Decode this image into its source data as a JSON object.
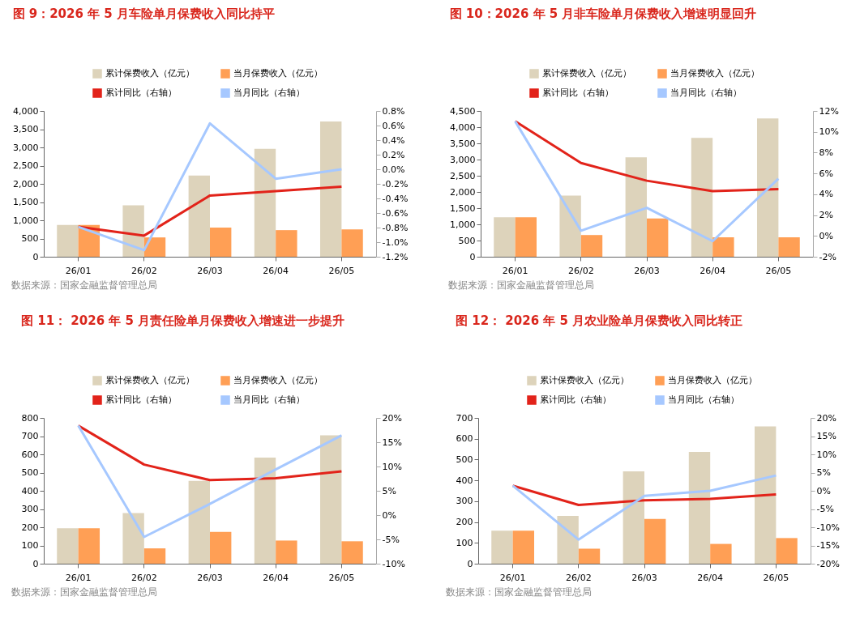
{
  "chart_data": [
    {
      "type": "bar",
      "title": "图 9：2026 年 5 月车险单月保费收入同比持平",
      "categories": [
        "26/01",
        "26/02",
        "26/03",
        "26/04",
        "26/05"
      ],
      "series": [
        {
          "name": "累计保费收入（亿元）",
          "type": "bar",
          "color": "#ddd3bb",
          "values": [
            870,
            1410,
            2230,
            2960,
            3710
          ]
        },
        {
          "name": "当月保费收入（亿元）",
          "type": "bar",
          "color": "#ff9f55",
          "values": [
            870,
            530,
            800,
            730,
            750
          ]
        },
        {
          "name": "累计同比（右轴）",
          "type": "line",
          "axis": "y2",
          "color": "#e2231a",
          "values": [
            -0.79,
            -0.91,
            -0.36,
            -0.3,
            -0.24
          ]
        },
        {
          "name": "当月同比（右轴）",
          "type": "line",
          "axis": "y2",
          "color": "#a6c8ff",
          "values": [
            -0.79,
            -1.11,
            0.63,
            -0.13,
            0.0
          ]
        }
      ],
      "ylim": [
        0,
        4000
      ],
      "yticks": [
        0,
        500,
        {
          "value": 1000,
          "label": "1,000"
        },
        {
          "value": 1500,
          "label": "1,500"
        },
        {
          "value": 2000,
          "label": "2,000"
        },
        {
          "value": 2500,
          "label": "2,500"
        },
        {
          "value": 3000,
          "label": "3,000"
        },
        {
          "value": 3500,
          "label": "3,500"
        },
        {
          "value": 4000,
          "label": "4,000"
        }
      ],
      "y2lim": [
        -1.2,
        0.8
      ],
      "y2ticks": [
        {
          "value": -1.2,
          "label": "-1.2%"
        },
        {
          "value": -1.0,
          "label": "-1.0%"
        },
        {
          "value": -0.8,
          "label": "-0.8%"
        },
        {
          "value": -0.6,
          "label": "-0.6%"
        },
        {
          "value": -0.4,
          "label": "-0.4%"
        },
        {
          "value": -0.2,
          "label": "-0.2%"
        },
        {
          "value": 0,
          "label": "0.0%"
        },
        {
          "value": 0.2,
          "label": "0.2%"
        },
        {
          "value": 0.4,
          "label": "0.4%"
        },
        {
          "value": 0.6,
          "label": "0.6%"
        },
        {
          "value": 0.8,
          "label": "0.8%"
        }
      ],
      "legend": "top",
      "annotations": [
        "数据来源：国家金融监督管理总局"
      ]
    },
    {
      "type": "bar",
      "title": "图 10：2026 年 5 月非车险单月保费收入增速明显回升",
      "categories": [
        "26/01",
        "26/02",
        "26/03",
        "26/04",
        "26/05"
      ],
      "series": [
        {
          "name": "累计保费收入（亿元）",
          "type": "bar",
          "color": "#ddd3bb",
          "values": [
            1220,
            1890,
            3070,
            3670,
            4270
          ]
        },
        {
          "name": "当月保费收入（亿元）",
          "type": "bar",
          "color": "#ff9f55",
          "values": [
            1220,
            670,
            1180,
            600,
            600
          ]
        },
        {
          "name": "累计同比（右轴）",
          "type": "line",
          "axis": "y2",
          "color": "#e2231a",
          "values": [
            11.0,
            7.0,
            5.3,
            4.3,
            4.5
          ]
        },
        {
          "name": "当月同比（右轴）",
          "type": "line",
          "axis": "y2",
          "color": "#a6c8ff",
          "values": [
            11.0,
            0.5,
            2.7,
            -0.5,
            5.5
          ]
        }
      ],
      "ylim": [
        0,
        4500
      ],
      "yticks": [
        0,
        500,
        {
          "value": 1000,
          "label": "1,000"
        },
        {
          "value": 1500,
          "label": "1,500"
        },
        {
          "value": 2000,
          "label": "2,000"
        },
        {
          "value": 2500,
          "label": "2,500"
        },
        {
          "value": 3000,
          "label": "3,000"
        },
        {
          "value": 3500,
          "label": "3,500"
        },
        {
          "value": 4000,
          "label": "4,000"
        },
        {
          "value": 4500,
          "label": "4,500"
        }
      ],
      "y2lim": [
        -2,
        12
      ],
      "y2ticks": [
        {
          "value": -2,
          "label": "-2%"
        },
        {
          "value": 0,
          "label": "0%"
        },
        {
          "value": 2,
          "label": "2%"
        },
        {
          "value": 4,
          "label": "4%"
        },
        {
          "value": 6,
          "label": "6%"
        },
        {
          "value": 8,
          "label": "8%"
        },
        {
          "value": 10,
          "label": "10%"
        },
        {
          "value": 12,
          "label": "12%"
        }
      ],
      "legend": "top",
      "annotations": [
        "数据来源：国家金融监督管理总局"
      ]
    },
    {
      "type": "bar",
      "title": "图 11： 2026 年 5 月责任险单月保费收入增速进一步提升",
      "categories": [
        "26/01",
        "26/02",
        "26/03",
        "26/04",
        "26/05"
      ],
      "series": [
        {
          "name": "累计保费收入（亿元）",
          "type": "bar",
          "color": "#ddd3bb",
          "values": [
            194,
            278,
            455,
            582,
            705
          ]
        },
        {
          "name": "当月保费收入（亿元）",
          "type": "bar",
          "color": "#ff9f55",
          "values": [
            194,
            84,
            175,
            127,
            123
          ]
        },
        {
          "name": "累计同比（右轴）",
          "type": "line",
          "axis": "y2",
          "color": "#e2231a",
          "values": [
            18.4,
            10.4,
            7.2,
            7.6,
            9.0
          ]
        },
        {
          "name": "当月同比（右轴）",
          "type": "line",
          "axis": "y2",
          "color": "#a6c8ff",
          "values": [
            18.4,
            -4.5,
            2.3,
            9.4,
            16.4
          ]
        }
      ],
      "ylim": [
        0,
        800
      ],
      "yticks": [
        0,
        100,
        200,
        300,
        400,
        500,
        600,
        700,
        800
      ],
      "y2lim": [
        -10,
        20
      ],
      "y2ticks": [
        {
          "value": -10,
          "label": "-10%"
        },
        {
          "value": -5,
          "label": "-5%"
        },
        {
          "value": 0,
          "label": "0%"
        },
        {
          "value": 5,
          "label": "5%"
        },
        {
          "value": 10,
          "label": "10%"
        },
        {
          "value": 15,
          "label": "15%"
        },
        {
          "value": 20,
          "label": "20%"
        }
      ],
      "legend": "top",
      "annotations": [
        "数据来源：国家金融监督管理总局"
      ]
    },
    {
      "type": "bar",
      "title": "图 12： 2026 年 5 月农业险单月保费收入同比转正",
      "categories": [
        "26/01",
        "26/02",
        "26/03",
        "26/04",
        "26/05"
      ],
      "series": [
        {
          "name": "累计保费收入（亿元）",
          "type": "bar",
          "color": "#ddd3bb",
          "values": [
            158,
            229,
            443,
            537,
            659
          ]
        },
        {
          "name": "当月保费收入（亿元）",
          "type": "bar",
          "color": "#ff9f55",
          "values": [
            158,
            72,
            215,
            95,
            123
          ]
        },
        {
          "name": "累计同比（右轴）",
          "type": "line",
          "axis": "y2",
          "color": "#e2231a",
          "values": [
            1.4,
            -3.9,
            -2.6,
            -2.2,
            -1.0
          ]
        },
        {
          "name": "当月同比（右轴）",
          "type": "line",
          "axis": "y2",
          "color": "#a6c8ff",
          "values": [
            1.4,
            -13.4,
            -1.4,
            0.0,
            4.2
          ]
        }
      ],
      "ylim": [
        0,
        700
      ],
      "yticks": [
        0,
        100,
        200,
        300,
        400,
        500,
        600,
        700
      ],
      "y2lim": [
        -20,
        20
      ],
      "y2ticks": [
        {
          "value": -20,
          "label": "-20%"
        },
        {
          "value": -15,
          "label": "-15%"
        },
        {
          "value": -10,
          "label": "-10%"
        },
        {
          "value": -5,
          "label": "-5%"
        },
        {
          "value": 0,
          "label": "0%"
        },
        {
          "value": 5,
          "label": "5%"
        },
        {
          "value": 10,
          "label": "10%"
        },
        {
          "value": 15,
          "label": "15%"
        },
        {
          "value": 20,
          "label": "20%"
        }
      ],
      "legend": "top",
      "annotations": [
        "数据来源：国家金融监督管理总局"
      ]
    }
  ]
}
